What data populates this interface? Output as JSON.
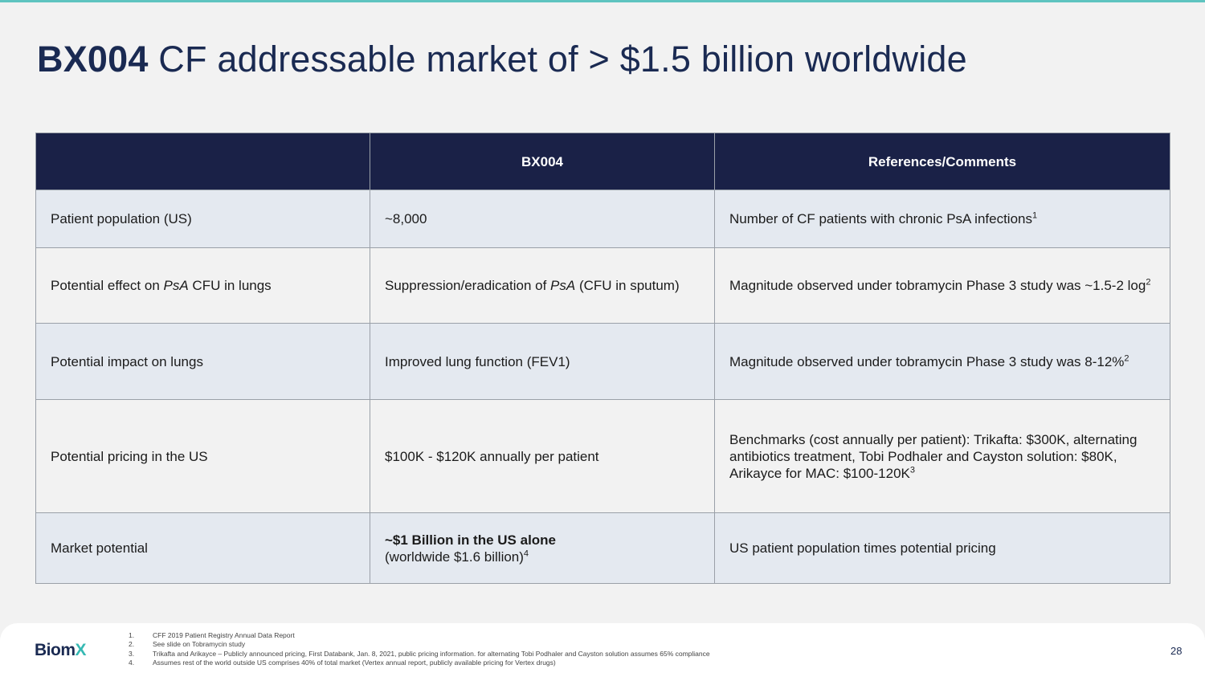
{
  "title": {
    "bold": "BX004",
    "rest": " CF addressable market of > $1.5 billion worldwide"
  },
  "table": {
    "headers": [
      "",
      "BX004",
      "References/Comments"
    ],
    "rows": [
      {
        "label": "Patient population (US)",
        "value": "~8,000",
        "comment": "Number of CF patients with chronic PsA infections",
        "comment_sup": "1"
      },
      {
        "label_pre": "Potential effect on ",
        "label_em": "PsA",
        "label_post": " CFU in lungs",
        "value_pre": "Suppression/eradication of ",
        "value_em": "PsA",
        "value_post": " (CFU in sputum)",
        "comment": "Magnitude observed under tobramycin Phase 3 study was ~1.5-2 log",
        "comment_sup": "2"
      },
      {
        "label": "Potential impact on lungs",
        "value": "Improved lung function (FEV1)",
        "comment": "Magnitude observed under tobramycin Phase 3 study was 8-12%",
        "comment_sup": "2"
      },
      {
        "label": "Potential pricing in the US",
        "value": "$100K - $120K annually per patient",
        "comment": "Benchmarks (cost annually per patient): Trikafta: $300K, alternating antibiotics treatment, Tobi Podhaler and Cayston solution: $80K, Arikayce for MAC: $100-120K",
        "comment_sup": "3"
      },
      {
        "label": "Market potential",
        "value_bold": "~$1 Billion in the US alone",
        "value_rest": "(worldwide $1.6 billion)",
        "value_sup": "4",
        "comment": "US patient population times potential pricing"
      }
    ]
  },
  "footer": {
    "logo_main": "Biom",
    "logo_accent": "X",
    "notes": [
      {
        "num": "1.",
        "text": "CFF 2019 Patient Registry Annual Data Report"
      },
      {
        "num": "2.",
        "text": "See slide on Tobramycin study"
      },
      {
        "num": "3.",
        "text": "Trikafta and Arikayce – Publicly announced pricing, First Databank, Jan. 8, 2021, public pricing information. for alternating Tobi Podhaler and Cayston solution assumes 65% compliance"
      },
      {
        "num": "4.",
        "text": "Assumes rest of the world outside US comprises 40% of total market (Vertex annual report, publicly available pricing for Vertex drugs)"
      }
    ],
    "page_number": "28"
  },
  "colors": {
    "header_bg": "#1a2147",
    "accent": "#36b9b3",
    "title": "#1a2a52",
    "row_shade": "#e4e9f0"
  }
}
